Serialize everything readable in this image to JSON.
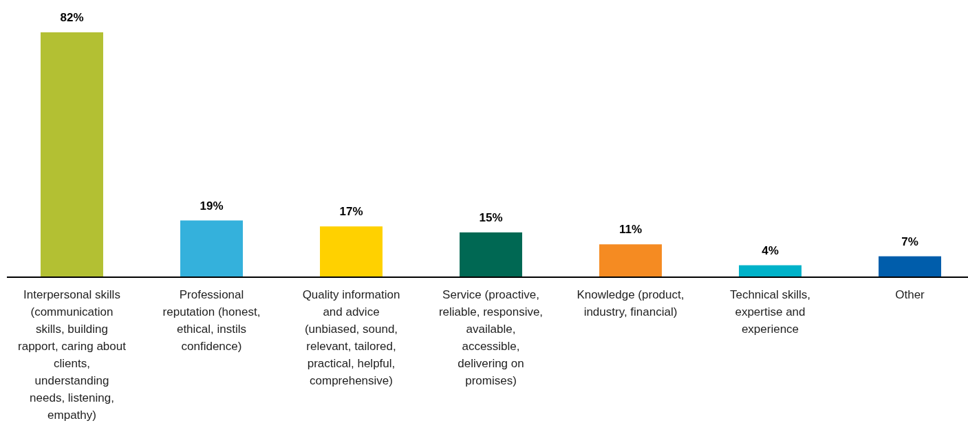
{
  "chart_data": {
    "type": "bar",
    "categories": [
      "Interpersonal skills (communication skills, building rapport, caring about clients, understanding needs, listening, empathy)",
      "Professional reputation (honest, ethical, instils confidence)",
      "Quality information and advice (unbiased, sound, relevant, tailored, practical, helpful, comprehensive)",
      "Service (proactive, reliable, responsive, available, accessible, delivering on promises)",
      "Knowledge (product, industry, financial)",
      "Technical skills, expertise and experience",
      "Other"
    ],
    "values": [
      82,
      19,
      17,
      15,
      11,
      4,
      7
    ],
    "colors": [
      "#b3c033",
      "#34b1dc",
      "#ffd100",
      "#006853",
      "#f58b22",
      "#00b2c9",
      "#005dab"
    ],
    "value_labels": [
      "82%",
      "19%",
      "17%",
      "15%",
      "11%",
      "4%",
      "7%"
    ]
  }
}
